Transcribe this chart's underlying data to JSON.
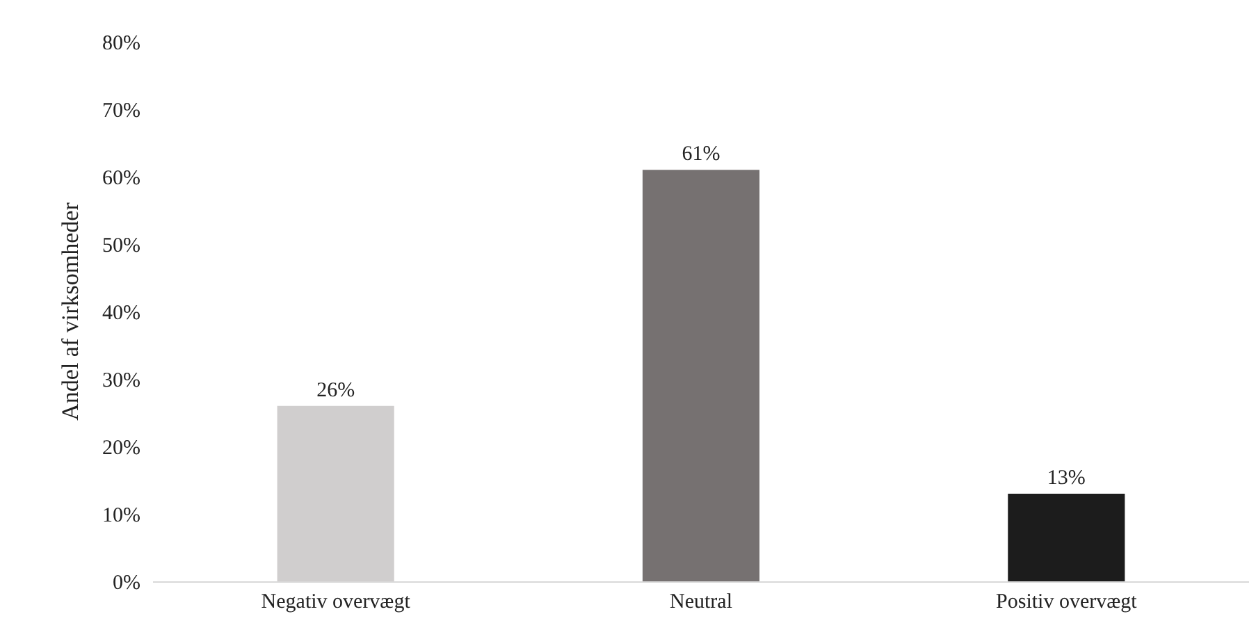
{
  "chart_data": {
    "type": "bar",
    "ylabel": "Andel af virksomheder",
    "categories": [
      "Negativ overvægt",
      "Neutral",
      "Positiv overvægt"
    ],
    "values": [
      26,
      61,
      13
    ],
    "colors": [
      "#d0cece",
      "#767171",
      "#1c1c1c"
    ],
    "value_labels": [
      "26%",
      "61%",
      "13%"
    ],
    "ylim": [
      0,
      80
    ],
    "yticks": [
      {
        "value": 0,
        "label": "0%"
      },
      {
        "value": 10,
        "label": "10%"
      },
      {
        "value": 20,
        "label": "20%"
      },
      {
        "value": 30,
        "label": "30%"
      },
      {
        "value": 40,
        "label": "40%"
      },
      {
        "value": 50,
        "label": "50%"
      },
      {
        "value": 60,
        "label": "60%"
      },
      {
        "value": 70,
        "label": "70%"
      },
      {
        "value": 80,
        "label": "80%"
      }
    ],
    "grid": false
  }
}
